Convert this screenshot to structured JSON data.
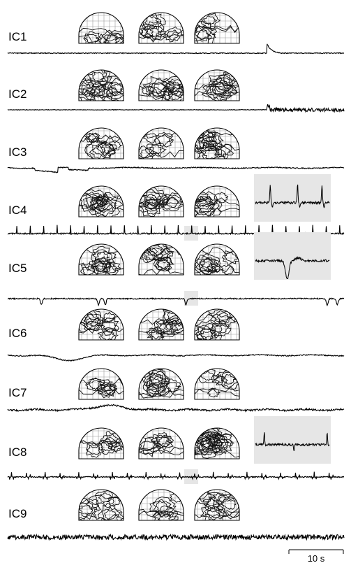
{
  "components": [
    {
      "label": "IC1",
      "has_zoom": false,
      "trace_style": "spike-late"
    },
    {
      "label": "IC2",
      "has_zoom": false,
      "trace_style": "burst-late"
    },
    {
      "label": "IC3",
      "has_zoom": false,
      "trace_style": "slow-steps"
    },
    {
      "label": "IC4",
      "has_zoom": true,
      "trace_style": "cardiac"
    },
    {
      "label": "IC5",
      "has_zoom": true,
      "trace_style": "blinks"
    },
    {
      "label": "IC6",
      "has_zoom": false,
      "trace_style": "slow-dip"
    },
    {
      "label": "IC7",
      "has_zoom": false,
      "trace_style": "slow-hump"
    },
    {
      "label": "IC8",
      "has_zoom": true,
      "trace_style": "pulse"
    },
    {
      "label": "IC9",
      "has_zoom": false,
      "trace_style": "noise"
    }
  ],
  "scalebar": {
    "label": "10 s"
  },
  "colors": {
    "trace": "#000000",
    "highlight": "#e6e6e6",
    "grid": "#9a9a9a",
    "contour": "#111111"
  }
}
